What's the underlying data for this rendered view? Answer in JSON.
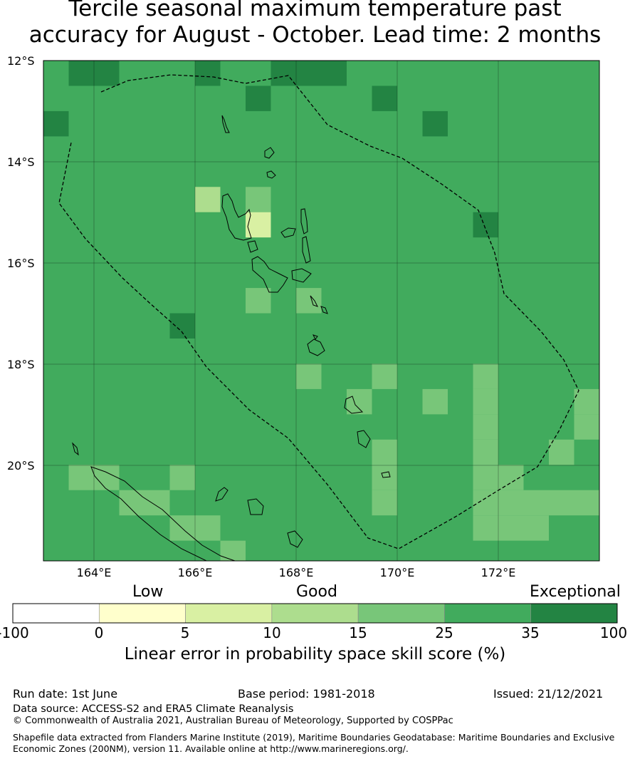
{
  "title": "Tercile seasonal maximum temperature past\naccuracy for August - October. Lead time: 2 months",
  "map": {
    "lat_labels": [
      "12°S",
      "14°S",
      "16°S",
      "18°S",
      "20°S"
    ],
    "lon_labels": [
      "164°E",
      "166°E",
      "168°E",
      "170°E",
      "172°E"
    ],
    "colors": {
      "c0": "#ffffff",
      "c1": "#ffffcc",
      "c2": "#d9f0a3",
      "c3": "#addd8e",
      "c4": "#78c679",
      "c5": "#41ab5d",
      "c6": "#238443"
    },
    "background_class": "c5",
    "grid_cells": [
      {
        "lon": 163.5,
        "lat": -12.0,
        "class": "c6"
      },
      {
        "lon": 164.0,
        "lat": -12.0,
        "class": "c6"
      },
      {
        "lon": 166.0,
        "lat": -12.0,
        "class": "c6"
      },
      {
        "lon": 167.5,
        "lat": -12.0,
        "class": "c6"
      },
      {
        "lon": 168.0,
        "lat": -12.0,
        "class": "c6"
      },
      {
        "lon": 168.5,
        "lat": -12.0,
        "class": "c6"
      },
      {
        "lon": 167.0,
        "lat": -12.5,
        "class": "c6"
      },
      {
        "lon": 169.5,
        "lat": -12.5,
        "class": "c6"
      },
      {
        "lon": 163.0,
        "lat": -13.0,
        "class": "c6"
      },
      {
        "lon": 170.5,
        "lat": -13.0,
        "class": "c6"
      },
      {
        "lon": 166.0,
        "lat": -14.5,
        "class": "c3"
      },
      {
        "lon": 167.0,
        "lat": -14.5,
        "class": "c4"
      },
      {
        "lon": 167.0,
        "lat": -15.0,
        "class": "c2"
      },
      {
        "lon": 171.5,
        "lat": -15.0,
        "class": "c6"
      },
      {
        "lon": 167.0,
        "lat": -16.5,
        "class": "c4"
      },
      {
        "lon": 168.0,
        "lat": -16.5,
        "class": "c4"
      },
      {
        "lon": 165.5,
        "lat": -17.0,
        "class": "c6"
      },
      {
        "lon": 168.0,
        "lat": -18.0,
        "class": "c4"
      },
      {
        "lon": 169.5,
        "lat": -18.0,
        "class": "c4"
      },
      {
        "lon": 171.5,
        "lat": -18.0,
        "class": "c4"
      },
      {
        "lon": 169.0,
        "lat": -18.5,
        "class": "c4"
      },
      {
        "lon": 170.5,
        "lat": -18.5,
        "class": "c4"
      },
      {
        "lon": 171.5,
        "lat": -18.5,
        "class": "c4"
      },
      {
        "lon": 173.5,
        "lat": -18.5,
        "class": "c4"
      },
      {
        "lon": 171.5,
        "lat": -19.0,
        "class": "c4"
      },
      {
        "lon": 173.5,
        "lat": -19.0,
        "class": "c4"
      },
      {
        "lon": 169.5,
        "lat": -19.5,
        "class": "c4"
      },
      {
        "lon": 171.5,
        "lat": -19.5,
        "class": "c4"
      },
      {
        "lon": 173.0,
        "lat": -19.5,
        "class": "c4"
      },
      {
        "lon": 163.5,
        "lat": -20.0,
        "class": "c4"
      },
      {
        "lon": 164.0,
        "lat": -20.0,
        "class": "c4"
      },
      {
        "lon": 165.5,
        "lat": -20.0,
        "class": "c4"
      },
      {
        "lon": 169.5,
        "lat": -20.0,
        "class": "c4"
      },
      {
        "lon": 171.5,
        "lat": -20.0,
        "class": "c4"
      },
      {
        "lon": 172.0,
        "lat": -20.0,
        "class": "c4"
      },
      {
        "lon": 164.5,
        "lat": -20.5,
        "class": "c4"
      },
      {
        "lon": 165.0,
        "lat": -20.5,
        "class": "c4"
      },
      {
        "lon": 169.5,
        "lat": -20.5,
        "class": "c4"
      },
      {
        "lon": 171.5,
        "lat": -20.5,
        "class": "c4"
      },
      {
        "lon": 172.0,
        "lat": -20.5,
        "class": "c4"
      },
      {
        "lon": 172.5,
        "lat": -20.5,
        "class": "c4"
      },
      {
        "lon": 173.0,
        "lat": -20.5,
        "class": "c4"
      },
      {
        "lon": 173.5,
        "lat": -20.5,
        "class": "c4"
      },
      {
        "lon": 165.5,
        "lat": -21.0,
        "class": "c4"
      },
      {
        "lon": 166.0,
        "lat": -21.0,
        "class": "c4"
      },
      {
        "lon": 171.5,
        "lat": -21.0,
        "class": "c4"
      },
      {
        "lon": 172.0,
        "lat": -21.0,
        "class": "c4"
      },
      {
        "lon": 172.5,
        "lat": -21.0,
        "class": "c4"
      },
      {
        "lon": 166.5,
        "lat": -21.5,
        "class": "c4"
      }
    ]
  },
  "colorbar": {
    "categories": [
      "Low",
      "Good",
      "Exceptional"
    ],
    "ticks": [
      "-100",
      "0",
      "5",
      "10",
      "15",
      "25",
      "35",
      "100"
    ],
    "classes": [
      "c0",
      "c1",
      "c2",
      "c3",
      "c4",
      "c5",
      "c6"
    ],
    "label": "Linear error in probability space skill score (%)"
  },
  "footer": {
    "run_date": "Run date: 1st June",
    "base_period": "Base period: 1981-2018",
    "issued": "Issued: 21/12/2021",
    "data_source": "Data source: ACCESS-S2 and ERA5 Climate Reanalysis",
    "copyright": "© Commonwealth of Australia 2021, Australian Bureau of Meteorology, Supported by COSPPac",
    "shapefile": "Shapefile data extracted from Flanders Marine Institute (2019), Maritime Boundaries Geodatabase: Maritime Boundaries and Exclusive Economic Zones (200NM), version 11. Available online at http://www.marineregions.org/."
  }
}
